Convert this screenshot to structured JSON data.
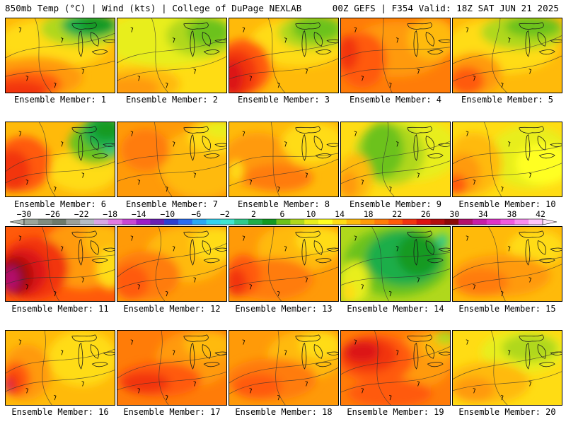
{
  "header": {
    "left": "850mb Temp (°C) | Wind (kts) | College of DuPage NEXLAB",
    "right": "00Z GEFS | F354 Valid: 18Z SAT JUN 21 2025"
  },
  "colorbar": {
    "tick_labels": [
      "−30",
      "−26",
      "−22",
      "−18",
      "−14",
      "−10",
      "−6",
      "−2",
      "2",
      "6",
      "10",
      "14",
      "18",
      "22",
      "26",
      "30",
      "34",
      "38",
      "42"
    ],
    "colors": [
      "#9aa59a",
      "#7f8c7f",
      "#6c7a6c",
      "#9aa09a",
      "#b4bcc4",
      "#d8a6e4",
      "#e27ae4",
      "#c846d4",
      "#9d1cc8",
      "#6a1fb2",
      "#2c3fd0",
      "#2a6cf0",
      "#2aa8f4",
      "#30d2f0",
      "#40e6d0",
      "#2fca8c",
      "#1fae4a",
      "#129a22",
      "#6cc21a",
      "#b0d81c",
      "#e8ee1c",
      "#ffff20",
      "#ffdc14",
      "#ffba0a",
      "#ff9a08",
      "#ff7c08",
      "#ff5a0a",
      "#f23410",
      "#dc1212",
      "#b40e0e",
      "#8c0a0a",
      "#b4106c",
      "#c81ca8",
      "#e032c8",
      "#f05ae0",
      "#fa8cf0",
      "#ffc4fa"
    ]
  },
  "panels": [
    {
      "label": "Ensemble Member: 1"
    },
    {
      "label": "Ensemble Member: 2"
    },
    {
      "label": "Ensemble Member: 3"
    },
    {
      "label": "Ensemble Member: 4"
    },
    {
      "label": "Ensemble Member: 5"
    },
    {
      "label": "Ensemble Member: 6"
    },
    {
      "label": "Ensemble Member: 7"
    },
    {
      "label": "Ensemble Member: 8"
    },
    {
      "label": "Ensemble Member: 9"
    },
    {
      "label": "Ensemble Member: 10"
    },
    {
      "label": "Ensemble Member: 11"
    },
    {
      "label": "Ensemble Member: 12"
    },
    {
      "label": "Ensemble Member: 13"
    },
    {
      "label": "Ensemble Member: 14"
    },
    {
      "label": "Ensemble Member: 15"
    },
    {
      "label": "Ensemble Member: 16"
    },
    {
      "label": "Ensemble Member: 17"
    },
    {
      "label": "Ensemble Member: 18"
    },
    {
      "label": "Ensemble Member: 19"
    },
    {
      "label": "Ensemble Member: 20"
    }
  ]
}
